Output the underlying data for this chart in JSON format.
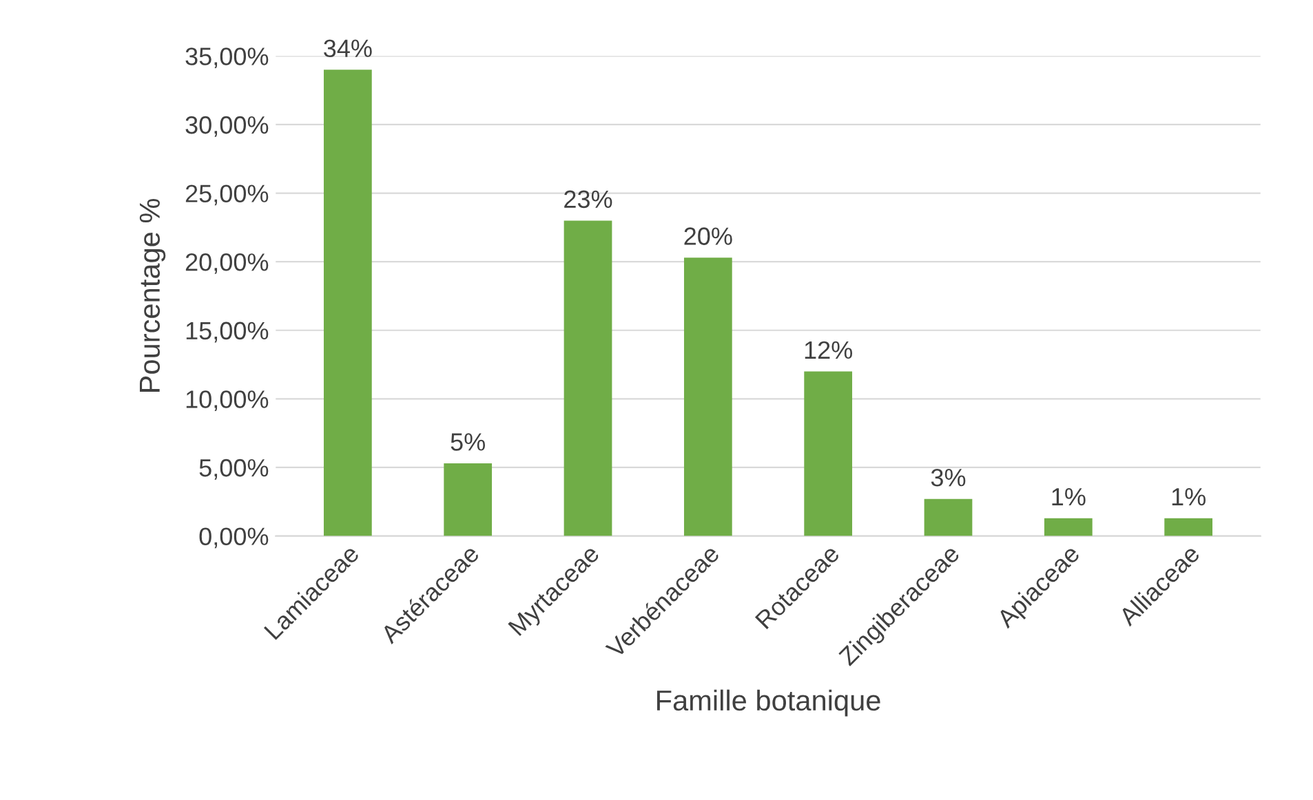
{
  "chart_data": {
    "type": "bar",
    "xlabel": "Famille botanique",
    "ylabel": "Pourcentage %",
    "categories": [
      "Lamiaceae",
      "Astéraceae",
      "Myrtaceae",
      "Verbénaceae",
      "Rotaceae",
      "Zingiberaceae",
      "Apiaceae",
      "Alliaceae"
    ],
    "values": [
      34,
      5.3,
      23,
      20.3,
      12,
      2.7,
      1.3,
      1.3
    ],
    "value_labels": [
      "34%",
      "5%",
      "23%",
      "20%",
      "12%",
      "3%",
      "1%",
      "1%"
    ],
    "color": "#70ad47",
    "ylim": [
      0,
      35
    ],
    "yticks": [
      {
        "value": 0,
        "label": "0,00%"
      },
      {
        "value": 5,
        "label": "5,00%"
      },
      {
        "value": 10,
        "label": "10,00%"
      },
      {
        "value": 15,
        "label": "15,00%"
      },
      {
        "value": 20,
        "label": "20,00%"
      },
      {
        "value": 25,
        "label": "25,00%"
      },
      {
        "value": 30,
        "label": "30,00%"
      },
      {
        "value": 35,
        "label": "35,00%"
      }
    ],
    "grid": "y"
  }
}
